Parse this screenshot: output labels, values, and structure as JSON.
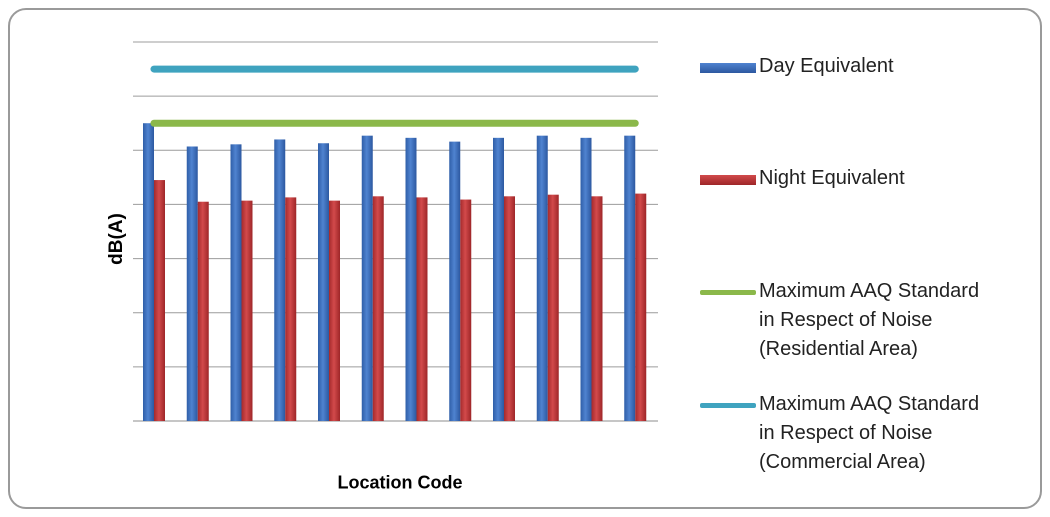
{
  "chart_data": {
    "type": "bar",
    "title": "",
    "xlabel": "Location Code",
    "ylabel": "dB(A)",
    "categories": [
      "",
      "",
      "",
      "",
      "",
      "",
      "",
      "",
      "",
      "",
      "",
      ""
    ],
    "ylim": [
      0,
      70
    ],
    "grid": true,
    "legend_position": "right",
    "series": [
      {
        "name": "Day Equivalent",
        "kind": "bar",
        "color": "#3f6fbf",
        "values": [
          55.0,
          50.7,
          51.1,
          52.0,
          51.3,
          52.7,
          52.3,
          51.6,
          52.3,
          52.7,
          52.3,
          52.7
        ]
      },
      {
        "name": "Night Equivalent",
        "kind": "bar",
        "color": "#c0393b",
        "values": [
          44.5,
          40.5,
          40.7,
          41.3,
          40.7,
          41.5,
          41.3,
          40.9,
          41.5,
          41.8,
          41.5,
          42.0
        ]
      },
      {
        "name": "Maximum AAQ Standard in Respect of Noise (Residential Area)",
        "kind": "line",
        "color": "#8bb84a",
        "values": [
          55,
          55,
          55,
          55,
          55,
          55,
          55,
          55,
          55,
          55,
          55,
          55
        ]
      },
      {
        "name": "Maximum AAQ Standard in Respect of Noise (Commercial Area)",
        "kind": "line",
        "color": "#3fa3bf",
        "values": [
          65,
          65,
          65,
          65,
          65,
          65,
          65,
          65,
          65,
          65,
          65,
          65
        ]
      }
    ]
  },
  "legend": [
    {
      "label": "Day Equivalent",
      "type": "box",
      "color": "#3f6fbf"
    },
    {
      "label": "Night Equivalent",
      "type": "box",
      "color": "#c0393b"
    },
    {
      "label": "Maximum AAQ Standard\nin Respect of Noise\n(Residential Area)",
      "type": "line",
      "color": "#8bb84a"
    },
    {
      "label": "Maximum AAQ Standard\nin Respect of Noise\n(Commercial Area)",
      "type": "line",
      "color": "#3fa3bf"
    }
  ]
}
